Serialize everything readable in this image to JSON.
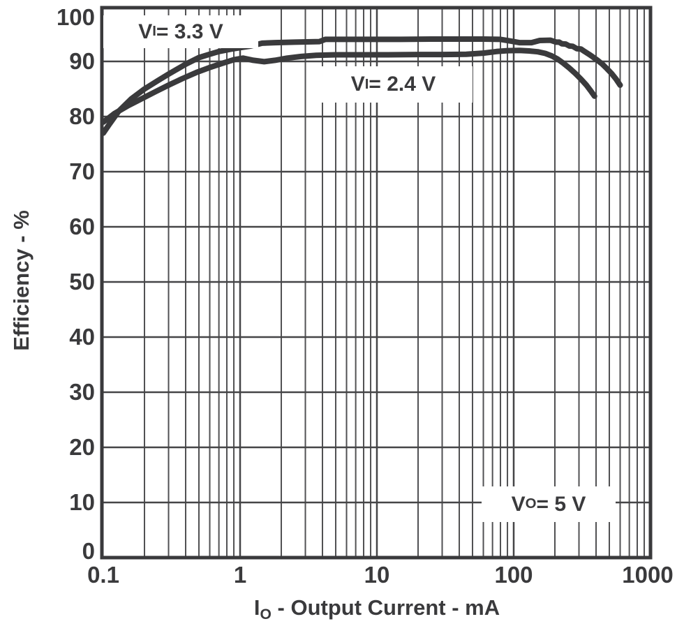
{
  "figure": {
    "background": "#ffffff",
    "ink_color": "#3a3a3c",
    "grid_major_color": "#454547",
    "grid_minor_color": "#515153"
  },
  "chart_data": {
    "type": "line",
    "x_scale": "log",
    "grid": "major horizontal every 10; log major+minor vertical; full frame border",
    "legend_position": "inline annotations",
    "xlabel_parts": {
      "main": "I",
      "sub": "O",
      "rest": " - Output Current - mA"
    },
    "ylabel": "Efficiency - %",
    "xlim": [
      0.1,
      1000
    ],
    "ylim": [
      0,
      100
    ],
    "x_ticks": [
      0.1,
      1,
      10,
      100,
      1000
    ],
    "x_tick_labels": [
      "0.1",
      "1",
      "10",
      "100",
      "1000"
    ],
    "y_ticks": [
      0,
      10,
      20,
      30,
      40,
      50,
      60,
      70,
      80,
      90,
      100
    ],
    "y_tick_labels": [
      "0",
      "10",
      "20",
      "30",
      "40",
      "50",
      "60",
      "70",
      "80",
      "90",
      "100"
    ],
    "annotations": [
      {
        "id": "vi33",
        "prefix": "V",
        "sub": "I",
        "rest": " = 3.3 V"
      },
      {
        "id": "vi24",
        "prefix": "V",
        "sub": "I",
        "rest": " = 2.4 V"
      },
      {
        "id": "vo5",
        "prefix": "V",
        "sub": "O",
        "rest": " = 5 V"
      }
    ],
    "series": [
      {
        "name": "VI = 3.3 V",
        "points": [
          [
            0.1,
            77
          ],
          [
            0.11,
            78.5
          ],
          [
            0.13,
            81
          ],
          [
            0.16,
            83.2
          ],
          [
            0.2,
            85
          ],
          [
            0.25,
            86.5
          ],
          [
            0.3,
            87.7
          ],
          [
            0.4,
            89.5
          ],
          [
            0.5,
            90.7
          ],
          [
            0.6,
            91.3
          ],
          [
            0.7,
            91.8
          ],
          [
            0.85,
            92.2
          ],
          [
            1.0,
            92.5
          ],
          [
            1.2,
            92.8
          ],
          [
            1.45,
            93.3
          ],
          [
            1.8,
            93.4
          ],
          [
            2.5,
            93.5
          ],
          [
            3.8,
            93.6
          ],
          [
            4.2,
            94.0
          ],
          [
            6,
            94.0
          ],
          [
            10,
            94.0
          ],
          [
            15,
            94.0
          ],
          [
            25,
            94.05
          ],
          [
            40,
            94.05
          ],
          [
            60,
            94.05
          ],
          [
            80,
            94.0
          ],
          [
            95,
            93.7
          ],
          [
            110,
            93.4
          ],
          [
            135,
            93.4
          ],
          [
            155,
            93.8
          ],
          [
            185,
            93.85
          ],
          [
            205,
            93.5
          ],
          [
            215,
            93.5
          ],
          [
            225,
            93.2
          ],
          [
            240,
            93.15
          ],
          [
            255,
            92.8
          ],
          [
            270,
            92.75
          ],
          [
            290,
            92.3
          ],
          [
            310,
            92.25
          ],
          [
            330,
            91.8
          ],
          [
            355,
            91.3
          ],
          [
            380,
            90.8
          ],
          [
            410,
            90.2
          ],
          [
            445,
            89.5
          ],
          [
            480,
            88.7
          ],
          [
            520,
            87.8
          ],
          [
            560,
            86.8
          ],
          [
            600,
            85.7
          ]
        ]
      },
      {
        "name": "VI = 2.4 V",
        "points": [
          [
            0.1,
            79
          ],
          [
            0.12,
            80.5
          ],
          [
            0.15,
            81.9
          ],
          [
            0.19,
            83.2
          ],
          [
            0.24,
            84.5
          ],
          [
            0.3,
            85.7
          ],
          [
            0.38,
            86.9
          ],
          [
            0.48,
            88.0
          ],
          [
            0.6,
            88.9
          ],
          [
            0.75,
            89.7
          ],
          [
            0.9,
            90.3
          ],
          [
            1.05,
            90.6
          ],
          [
            1.25,
            90.2
          ],
          [
            1.5,
            89.95
          ],
          [
            1.8,
            90.2
          ],
          [
            2.2,
            90.6
          ],
          [
            2.8,
            90.9
          ],
          [
            3.6,
            91.1
          ],
          [
            5,
            91.2
          ],
          [
            8,
            91.2
          ],
          [
            12,
            91.2
          ],
          [
            20,
            91.25
          ],
          [
            30,
            91.25
          ],
          [
            45,
            91.3
          ],
          [
            60,
            91.5
          ],
          [
            75,
            91.8
          ],
          [
            90,
            91.95
          ],
          [
            110,
            92.0
          ],
          [
            130,
            91.9
          ],
          [
            150,
            91.75
          ],
          [
            170,
            91.45
          ],
          [
            190,
            91.0
          ],
          [
            210,
            90.4
          ],
          [
            230,
            89.7
          ],
          [
            255,
            88.8
          ],
          [
            280,
            87.9
          ],
          [
            310,
            86.8
          ],
          [
            340,
            85.7
          ],
          [
            365,
            84.7
          ],
          [
            390,
            83.7
          ]
        ]
      }
    ]
  }
}
